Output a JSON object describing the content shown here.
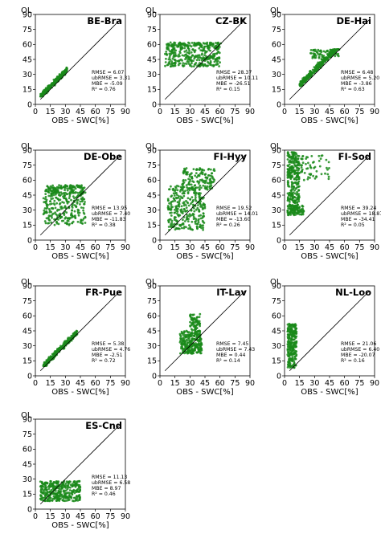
{
  "figure": {
    "top_left_label": "OL"
  },
  "chart_data": [
    {
      "type": "scatter",
      "title": "BE-Bra",
      "corner_label": "OL",
      "xlabel": "OBS - SWC[%]",
      "ylabel": "",
      "xlim": [
        0,
        90
      ],
      "ylim": [
        0,
        90
      ],
      "xticks": [
        0,
        15,
        30,
        45,
        60,
        75,
        90
      ],
      "yticks": [
        0,
        15,
        30,
        45,
        60,
        75,
        90
      ],
      "one_to_one_line": true,
      "point_color": "#1a8a1a",
      "stats": {
        "RMSE": "RMSE = 6.07",
        "ubRMSE": "ubRMSE = 3.31",
        "MBE": "MBE = -5.09",
        "R2": "R² = 0.76"
      },
      "clusters": [
        {
          "x_range": [
            5,
            32
          ],
          "y_range": [
            8,
            42
          ],
          "follow_line": true,
          "offset": 3,
          "spread": 4,
          "n": 260
        }
      ]
    },
    {
      "type": "scatter",
      "title": "CZ-BK",
      "corner_label": "OL",
      "xlabel": "OBS - SWC[%]",
      "ylabel": "",
      "xlim": [
        0,
        90
      ],
      "ylim": [
        0,
        90
      ],
      "xticks": [
        0,
        15,
        30,
        45,
        60,
        75,
        90
      ],
      "yticks": [
        0,
        15,
        30,
        45,
        60,
        75,
        90
      ],
      "one_to_one_line": true,
      "point_color": "#1a8a1a",
      "stats": {
        "RMSE": "RMSE = 28.37",
        "ubRMSE": "ubRMSE = 10.11",
        "MBE": "MBE = -26.51",
        "R2": "R² = 0.15"
      },
      "clusters": [
        {
          "x_range": [
            5,
            60
          ],
          "y_range": [
            38,
            62
          ],
          "follow_line": false,
          "n": 340
        },
        {
          "x_range": [
            8,
            62
          ],
          "y_range": [
            58,
            62
          ],
          "follow_line": false,
          "n": 60
        }
      ]
    },
    {
      "type": "scatter",
      "title": "DE-Hai",
      "corner_label": "OL",
      "xlabel": "OBS - SWC[%]",
      "ylabel": "",
      "xlim": [
        0,
        90
      ],
      "ylim": [
        0,
        90
      ],
      "xticks": [
        0,
        15,
        30,
        45,
        60,
        75,
        90
      ],
      "yticks": [
        0,
        15,
        30,
        45,
        60,
        75,
        90
      ],
      "one_to_one_line": true,
      "point_color": "#1a8a1a",
      "stats": {
        "RMSE": "RMSE = 6.48",
        "ubRMSE": "ubRMSE = 5.20",
        "MBE": "MBE = -3.86",
        "R2": "R² = 0.63"
      },
      "clusters": [
        {
          "x_range": [
            15,
            55
          ],
          "y_range": [
            18,
            55
          ],
          "follow_line": true,
          "offset": 4,
          "spread": 5,
          "n": 320
        },
        {
          "x_range": [
            25,
            55
          ],
          "y_range": [
            45,
            55
          ],
          "follow_line": false,
          "n": 60
        }
      ]
    },
    {
      "type": "scatter",
      "title": "DE-Obe",
      "corner_label": "OL",
      "xlabel": "OBS - SWC[%]",
      "ylabel": "",
      "xlim": [
        0,
        90
      ],
      "ylim": [
        0,
        90
      ],
      "xticks": [
        0,
        15,
        30,
        45,
        60,
        75,
        90
      ],
      "yticks": [
        0,
        15,
        30,
        45,
        60,
        75,
        90
      ],
      "one_to_one_line": true,
      "point_color": "#1a8a1a",
      "stats": {
        "RMSE": "RMSE = 13.95",
        "ubRMSE": "ubRMSE = 7.40",
        "MBE": "MBE = -11.83",
        "R2": "R² = 0.38"
      },
      "clusters": [
        {
          "x_range": [
            8,
            50
          ],
          "y_range": [
            15,
            55
          ],
          "follow_line": false,
          "n": 300
        },
        {
          "x_range": [
            15,
            48
          ],
          "y_range": [
            45,
            55
          ],
          "follow_line": false,
          "n": 80
        }
      ]
    },
    {
      "type": "scatter",
      "title": "FI-Hyy",
      "corner_label": "OL",
      "xlabel": "OBS - SWC[%]",
      "ylabel": "",
      "xlim": [
        0,
        90
      ],
      "ylim": [
        0,
        90
      ],
      "xticks": [
        0,
        15,
        30,
        45,
        60,
        75,
        90
      ],
      "yticks": [
        0,
        15,
        30,
        45,
        60,
        75,
        90
      ],
      "one_to_one_line": true,
      "point_color": "#1a8a1a",
      "stats": {
        "RMSE": "RMSE = 19.52",
        "ubRMSE": "ubRMSE = 14.01",
        "MBE": "MBE = -13.60",
        "R2": "R² = 0.26"
      },
      "clusters": [
        {
          "x_range": [
            8,
            45
          ],
          "y_range": [
            10,
            55
          ],
          "follow_line": false,
          "n": 300
        },
        {
          "x_range": [
            22,
            55
          ],
          "y_range": [
            50,
            72
          ],
          "follow_line": false,
          "n": 140
        }
      ]
    },
    {
      "type": "scatter",
      "title": "FI-Sod",
      "corner_label": "OL",
      "xlabel": "OBS - SWC[%]",
      "ylabel": "",
      "xlim": [
        0,
        90
      ],
      "ylim": [
        0,
        90
      ],
      "xticks": [
        0,
        15,
        30,
        45,
        60,
        75,
        90
      ],
      "yticks": [
        0,
        15,
        30,
        45,
        60,
        75,
        90
      ],
      "one_to_one_line": true,
      "point_color": "#1a8a1a",
      "stats": {
        "RMSE": "RMSE = 39.24",
        "ubRMSE": "ubRMSE = 18.87",
        "MBE": "MBE = -34.41",
        "R2": "R² = 0.05"
      },
      "clusters": [
        {
          "x_range": [
            3,
            15
          ],
          "y_range": [
            25,
            88
          ],
          "follow_line": false,
          "n": 280
        },
        {
          "x_range": [
            3,
            45
          ],
          "y_range": [
            60,
            85
          ],
          "follow_line": false,
          "n": 90
        },
        {
          "x_range": [
            3,
            20
          ],
          "y_range": [
            25,
            35
          ],
          "follow_line": false,
          "n": 60
        }
      ]
    },
    {
      "type": "scatter",
      "title": "FR-Pue",
      "corner_label": "OL",
      "xlabel": "OBS - SWC[%]",
      "ylabel": "",
      "xlim": [
        0,
        90
      ],
      "ylim": [
        0,
        90
      ],
      "xticks": [
        0,
        15,
        30,
        45,
        60,
        75,
        90
      ],
      "yticks": [
        0,
        15,
        30,
        45,
        60,
        75,
        90
      ],
      "one_to_one_line": true,
      "point_color": "#1a8a1a",
      "stats": {
        "RMSE": "RMSE = 5.38",
        "ubRMSE": "ubRMSE = 4.76",
        "MBE": "MBE = -2.51",
        "R2": "R² = 0.72"
      },
      "clusters": [
        {
          "x_range": [
            8,
            42
          ],
          "y_range": [
            10,
            45
          ],
          "follow_line": true,
          "offset": 2,
          "spread": 4,
          "n": 280
        }
      ]
    },
    {
      "type": "scatter",
      "title": "IT-Lav",
      "corner_label": "OL",
      "xlabel": "OBS - SWC[%]",
      "ylabel": "",
      "xlim": [
        0,
        90
      ],
      "ylim": [
        0,
        90
      ],
      "xticks": [
        0,
        15,
        30,
        45,
        60,
        75,
        90
      ],
      "yticks": [
        0,
        15,
        30,
        45,
        60,
        75,
        90
      ],
      "one_to_one_line": true,
      "point_color": "#1a8a1a",
      "stats": {
        "RMSE": "RMSE = 7.45",
        "ubRMSE": "ubRMSE = 7.43",
        "MBE": "MBE = 0.44",
        "R2": "R² = 0.14"
      },
      "clusters": [
        {
          "x_range": [
            20,
            42
          ],
          "y_range": [
            22,
            45
          ],
          "follow_line": false,
          "n": 260
        },
        {
          "x_range": [
            30,
            40
          ],
          "y_range": [
            40,
            62
          ],
          "follow_line": false,
          "n": 80
        }
      ]
    },
    {
      "type": "scatter",
      "title": "NL-Loo",
      "corner_label": "OL",
      "xlabel": "OBS - SWC[%]",
      "ylabel": "",
      "xlim": [
        0,
        90
      ],
      "ylim": [
        0,
        90
      ],
      "xticks": [
        0,
        15,
        30,
        45,
        60,
        75,
        90
      ],
      "yticks": [
        0,
        15,
        30,
        45,
        60,
        75,
        90
      ],
      "one_to_one_line": true,
      "point_color": "#1a8a1a",
      "stats": {
        "RMSE": "RMSE = 21.06",
        "ubRMSE": "ubRMSE = 6.40",
        "MBE": "MBE = -20.07",
        "R2": "R² = 0.16"
      },
      "clusters": [
        {
          "x_range": [
            3,
            12
          ],
          "y_range": [
            8,
            52
          ],
          "follow_line": false,
          "n": 260
        }
      ]
    },
    {
      "type": "scatter",
      "title": "ES-Cnd",
      "corner_label": "OL",
      "xlabel": "OBS - SWC[%]",
      "ylabel": "",
      "xlim": [
        0,
        90
      ],
      "ylim": [
        0,
        90
      ],
      "xticks": [
        0,
        15,
        30,
        45,
        60,
        75,
        90
      ],
      "yticks": [
        0,
        15,
        30,
        45,
        60,
        75,
        90
      ],
      "one_to_one_line": true,
      "point_color": "#1a8a1a",
      "stats": {
        "RMSE": "RMSE = 11.13",
        "ubRMSE": "ubRMSE = 6.58",
        "MBE": "MBE = 8.97",
        "R2": "R² = 0.46"
      },
      "clusters": [
        {
          "x_range": [
            5,
            45
          ],
          "y_range": [
            8,
            28
          ],
          "follow_line": false,
          "n": 360
        }
      ]
    }
  ]
}
